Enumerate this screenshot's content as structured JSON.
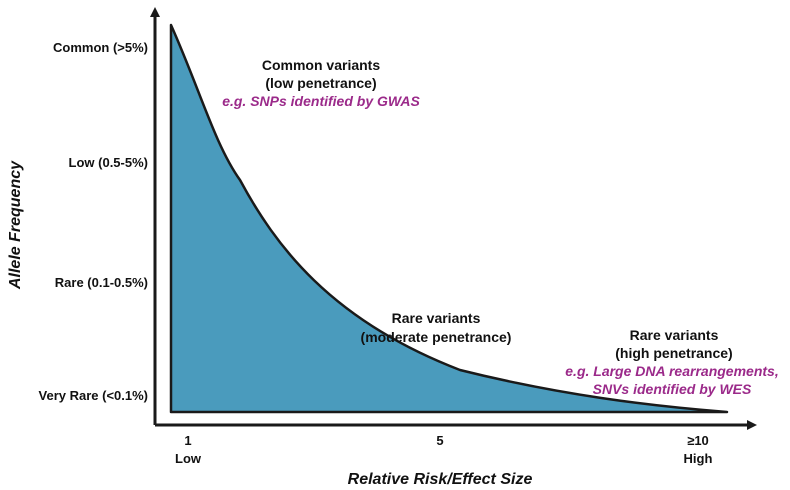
{
  "chart_data": {
    "type": "area",
    "title": "",
    "xlabel": "Relative Risk/Effect Size",
    "ylabel": "Allele Frequency",
    "x_ticks": [
      {
        "value": "1",
        "sublabel": "Low"
      },
      {
        "value": "5",
        "sublabel": ""
      },
      {
        "value": "≥10",
        "sublabel": "High"
      }
    ],
    "y_ticks": [
      "Common (>5%)",
      "Low (0.5-5%)",
      "Rare (0.1-0.5%)",
      "Very Rare (<0.1%)"
    ],
    "curve_description": "allele frequency decreases steeply as relative risk increases",
    "annotations": {
      "common": {
        "title": "Common variants",
        "subtitle": "(low penetrance)",
        "example": "e.g. SNPs identified by GWAS"
      },
      "rare_moderate": {
        "title": "Rare variants",
        "subtitle": "(moderate penetrance)"
      },
      "rare_high": {
        "title": "Rare variants",
        "subtitle": "(high penetrance)",
        "example_line1": "e.g. Large DNA rearrangements,",
        "example_line2": "SNVs identified by WES"
      }
    },
    "colors": {
      "fill": "#4a9bbd",
      "outline": "#1a1a1a",
      "example_text": "#9b2a8a"
    }
  }
}
